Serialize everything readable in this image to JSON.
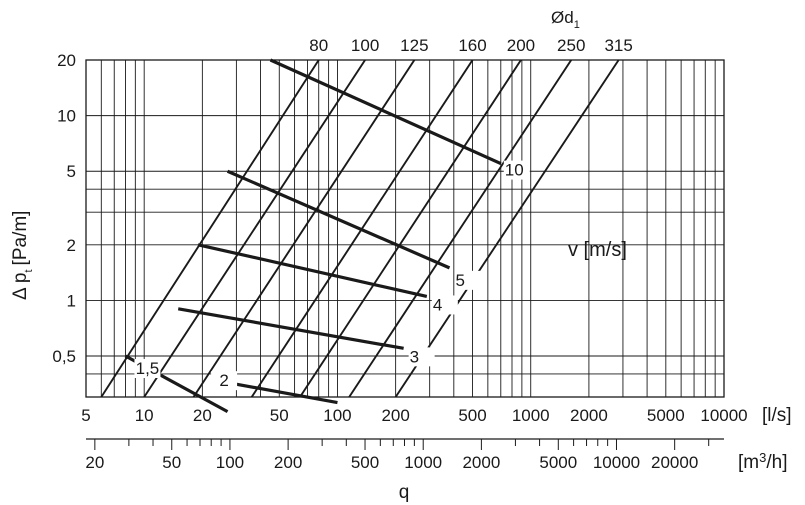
{
  "chart_data": {
    "type": "line",
    "title": "",
    "ylabel": "Δ p_t [Pa/m]",
    "ylabel_main": "Δ p",
    "ylabel_sub": "t",
    "ylabel_unit": "[Pa/m]",
    "xlabel": "q",
    "x_unit_ls": "[l/s]",
    "x_unit_m3h_base": "[m",
    "x_unit_m3h_sup": "3",
    "x_unit_m3h_tail": "/h]",
    "x_scale": "log",
    "y_scale": "log",
    "xlim_ls": [
      5,
      10000
    ],
    "ylim": [
      0.3,
      20
    ],
    "x_ticks_ls": [
      "5",
      "10",
      "20",
      "50",
      "100",
      "200",
      "500",
      "1000",
      "2000",
      "5000",
      "10000"
    ],
    "x_ticks_m3h": [
      "20",
      "50",
      "100",
      "200",
      "500",
      "1000",
      "2000",
      "5000",
      "10000",
      "20000"
    ],
    "y_ticks": [
      "0,5",
      "1",
      "2",
      "5",
      "10",
      "20"
    ],
    "y_tick_values": [
      0.5,
      1,
      2,
      5,
      10,
      20
    ],
    "grid": true,
    "duct_diameter_label": "Ød",
    "duct_diameter_sub": "1",
    "duct_series": [
      {
        "name": "80",
        "points": [
          [
            6,
            0.3
          ],
          [
            80,
            20
          ]
        ]
      },
      {
        "name": "100",
        "points": [
          [
            10,
            0.3
          ],
          [
            139,
            20
          ]
        ]
      },
      {
        "name": "125",
        "points": [
          [
            18,
            0.3
          ],
          [
            250,
            20
          ]
        ]
      },
      {
        "name": "160",
        "points": [
          [
            36,
            0.3
          ],
          [
            500,
            20
          ]
        ]
      },
      {
        "name": "200",
        "points": [
          [
            64,
            0.3
          ],
          [
            890,
            20
          ]
        ]
      },
      {
        "name": "250",
        "points": [
          [
            115,
            0.3
          ],
          [
            1620,
            20
          ]
        ]
      },
      {
        "name": "315",
        "points": [
          [
            200,
            0.3
          ],
          [
            2850,
            20
          ]
        ]
      }
    ],
    "velocity_label": "v [m/s]",
    "velocity_series": [
      {
        "name": "1,5",
        "points": [
          [
            8,
            0.5
          ],
          [
            27,
            0.25
          ]
        ]
      },
      {
        "name": "2",
        "points": [
          [
            23,
            0.37
          ],
          [
            100,
            0.28
          ]
        ]
      },
      {
        "name": "3",
        "points": [
          [
            15,
            0.9
          ],
          [
            220,
            0.55
          ]
        ]
      },
      {
        "name": "4",
        "points": [
          [
            19,
            2
          ],
          [
            290,
            1.05
          ]
        ]
      },
      {
        "name": "5",
        "points": [
          [
            27,
            5
          ],
          [
            380,
            1.5
          ]
        ]
      },
      {
        "name": "10",
        "points": [
          [
            45,
            20
          ],
          [
            700,
            5.5
          ]
        ]
      }
    ]
  }
}
